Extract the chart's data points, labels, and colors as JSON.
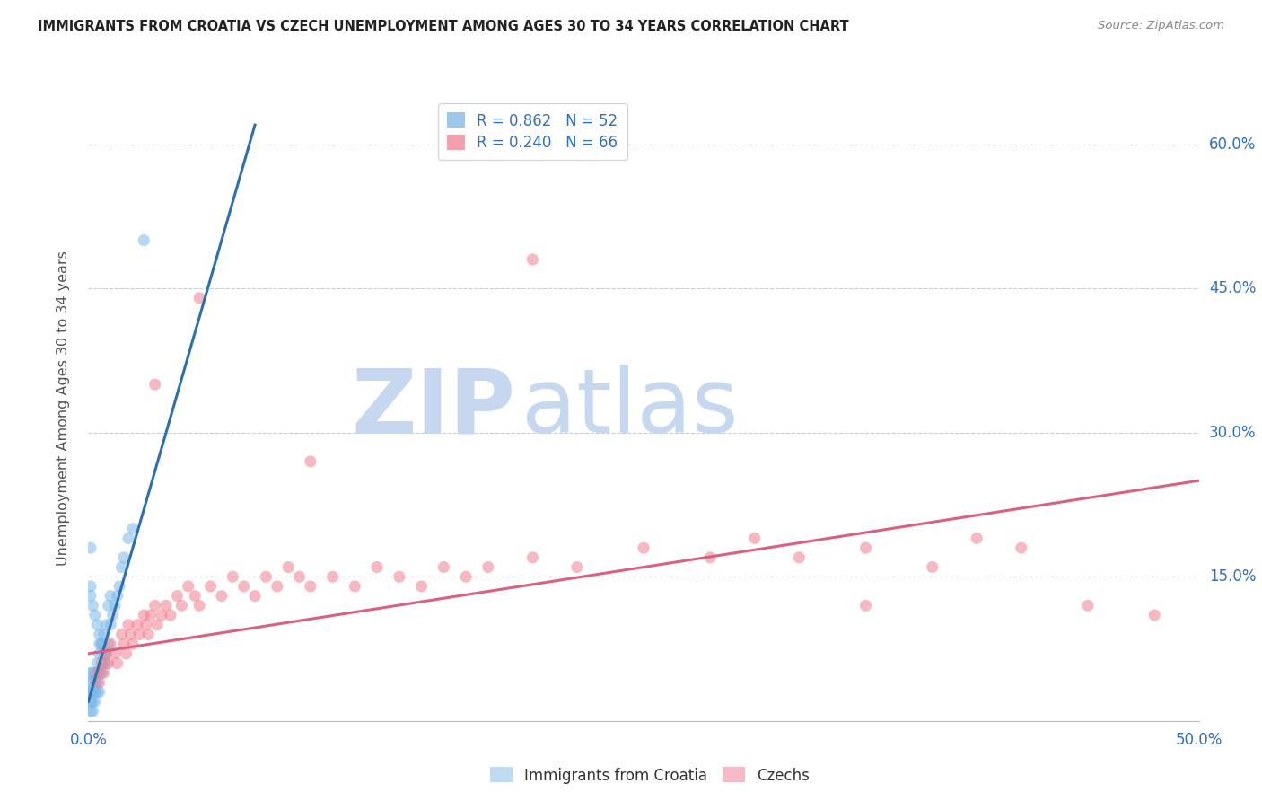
{
  "title": "IMMIGRANTS FROM CROATIA VS CZECH UNEMPLOYMENT AMONG AGES 30 TO 34 YEARS CORRELATION CHART",
  "source": "Source: ZipAtlas.com",
  "ylabel": "Unemployment Among Ages 30 to 34 years",
  "xlim": [
    0.0,
    0.5
  ],
  "ylim": [
    0.0,
    0.65
  ],
  "right_yticks": [
    0.0,
    0.15,
    0.3,
    0.45,
    0.6
  ],
  "right_yticklabels": [
    "",
    "15.0%",
    "30.0%",
    "45.0%",
    "60.0%"
  ],
  "xtick_labels": [
    "0.0%",
    "50.0%"
  ],
  "xtick_positions": [
    0.0,
    0.5
  ],
  "legend_R_entries": [
    {
      "label": "R = 0.862   N = 52",
      "color": "#7ab8e8"
    },
    {
      "label": "R = 0.240   N = 66",
      "color": "#f08090"
    }
  ],
  "watermark_ZIP": "ZIP",
  "watermark_atlas": "atlas",
  "watermark_color_ZIP": "#c5d8f0",
  "watermark_color_atlas": "#c5d8f0",
  "series_blue": {
    "color": "#7ab8e8",
    "trend_x": [
      0.0,
      0.075
    ],
    "trend_y": [
      0.02,
      0.62
    ],
    "points_x": [
      0.001,
      0.001,
      0.001,
      0.001,
      0.001,
      0.001,
      0.001,
      0.002,
      0.002,
      0.002,
      0.002,
      0.002,
      0.003,
      0.003,
      0.003,
      0.003,
      0.004,
      0.004,
      0.004,
      0.005,
      0.005,
      0.005,
      0.005,
      0.006,
      0.006,
      0.007,
      0.007,
      0.008,
      0.008,
      0.009,
      0.009,
      0.01,
      0.01,
      0.011,
      0.012,
      0.013,
      0.014,
      0.015,
      0.016,
      0.018,
      0.02,
      0.001,
      0.001,
      0.002,
      0.003,
      0.004,
      0.005,
      0.006,
      0.007,
      0.008,
      0.025,
      0.001
    ],
    "points_y": [
      0.01,
      0.02,
      0.02,
      0.03,
      0.03,
      0.04,
      0.05,
      0.01,
      0.02,
      0.03,
      0.04,
      0.05,
      0.02,
      0.03,
      0.04,
      0.05,
      0.03,
      0.04,
      0.06,
      0.03,
      0.05,
      0.07,
      0.08,
      0.05,
      0.08,
      0.06,
      0.09,
      0.07,
      0.1,
      0.08,
      0.12,
      0.1,
      0.13,
      0.11,
      0.12,
      0.13,
      0.14,
      0.16,
      0.17,
      0.19,
      0.2,
      0.14,
      0.13,
      0.12,
      0.11,
      0.1,
      0.09,
      0.08,
      0.07,
      0.06,
      0.5,
      0.18
    ]
  },
  "series_pink": {
    "color": "#f08090",
    "trend_x": [
      0.0,
      0.5
    ],
    "trend_y": [
      0.07,
      0.25
    ],
    "points_x": [
      0.004,
      0.005,
      0.006,
      0.007,
      0.008,
      0.009,
      0.01,
      0.012,
      0.013,
      0.015,
      0.016,
      0.017,
      0.018,
      0.019,
      0.02,
      0.022,
      0.023,
      0.025,
      0.026,
      0.027,
      0.028,
      0.03,
      0.031,
      0.033,
      0.035,
      0.037,
      0.04,
      0.042,
      0.045,
      0.048,
      0.05,
      0.055,
      0.06,
      0.065,
      0.07,
      0.075,
      0.08,
      0.085,
      0.09,
      0.095,
      0.1,
      0.11,
      0.12,
      0.13,
      0.14,
      0.15,
      0.16,
      0.17,
      0.18,
      0.2,
      0.22,
      0.25,
      0.28,
      0.3,
      0.32,
      0.35,
      0.38,
      0.4,
      0.42,
      0.45,
      0.48,
      0.35,
      0.2,
      0.1,
      0.05,
      0.03
    ],
    "points_y": [
      0.05,
      0.04,
      0.06,
      0.05,
      0.07,
      0.06,
      0.08,
      0.07,
      0.06,
      0.09,
      0.08,
      0.07,
      0.1,
      0.09,
      0.08,
      0.1,
      0.09,
      0.11,
      0.1,
      0.09,
      0.11,
      0.12,
      0.1,
      0.11,
      0.12,
      0.11,
      0.13,
      0.12,
      0.14,
      0.13,
      0.12,
      0.14,
      0.13,
      0.15,
      0.14,
      0.13,
      0.15,
      0.14,
      0.16,
      0.15,
      0.14,
      0.15,
      0.14,
      0.16,
      0.15,
      0.14,
      0.16,
      0.15,
      0.16,
      0.17,
      0.16,
      0.18,
      0.17,
      0.19,
      0.17,
      0.18,
      0.16,
      0.19,
      0.18,
      0.12,
      0.11,
      0.12,
      0.48,
      0.27,
      0.44,
      0.35
    ]
  },
  "bottom_legend": [
    {
      "label": "Immigrants from Croatia",
      "color": "#aacfea"
    },
    {
      "label": "Czechs",
      "color": "#f4a3b5"
    }
  ]
}
